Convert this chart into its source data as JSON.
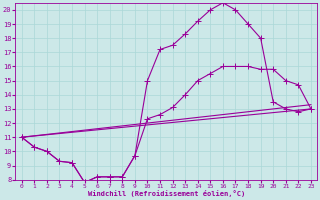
{
  "xlabel": "Windchill (Refroidissement éolien,°C)",
  "background_color": "#cce8e8",
  "line_color": "#990099",
  "grid_color": "#aad8d8",
  "xlim": [
    -0.5,
    23.5
  ],
  "ylim": [
    8,
    20.5
  ],
  "yticks": [
    8,
    9,
    10,
    11,
    12,
    13,
    14,
    15,
    16,
    17,
    18,
    19,
    20
  ],
  "xticks": [
    0,
    1,
    2,
    3,
    4,
    5,
    6,
    7,
    8,
    9,
    10,
    11,
    12,
    13,
    14,
    15,
    16,
    17,
    18,
    19,
    20,
    21,
    22,
    23
  ],
  "line1_x": [
    0,
    1,
    2,
    3,
    4,
    5,
    6,
    7,
    8,
    9,
    10,
    11,
    12,
    13,
    14,
    15,
    16,
    17,
    18,
    19,
    20,
    21,
    22,
    23
  ],
  "line1_y": [
    11,
    10.3,
    10,
    9.3,
    9.2,
    7.8,
    8.2,
    8.2,
    8.2,
    9.7,
    15.0,
    17.2,
    17.5,
    18.3,
    19.2,
    20.0,
    20.5,
    20.0,
    19.0,
    18.0,
    13.5,
    13.0,
    12.8,
    13.0
  ],
  "line2_x": [
    0,
    1,
    2,
    3,
    4,
    5,
    6,
    7,
    8,
    9,
    10,
    11,
    12,
    13,
    14,
    15,
    16,
    17,
    18,
    19,
    20,
    21,
    22,
    23
  ],
  "line2_y": [
    11,
    10.3,
    10,
    9.3,
    9.2,
    7.8,
    8.2,
    8.2,
    8.2,
    9.7,
    12.3,
    12.6,
    13.1,
    14.0,
    15.0,
    15.5,
    16.0,
    16.0,
    16.0,
    15.8,
    15.8,
    15.0,
    14.7,
    13.0
  ],
  "line3_x": [
    0,
    23
  ],
  "line3_y": [
    11,
    13.0
  ],
  "line4_x": [
    0,
    23
  ],
  "line4_y": [
    11,
    13.0
  ],
  "marker_size": 3,
  "line_width": 0.8
}
